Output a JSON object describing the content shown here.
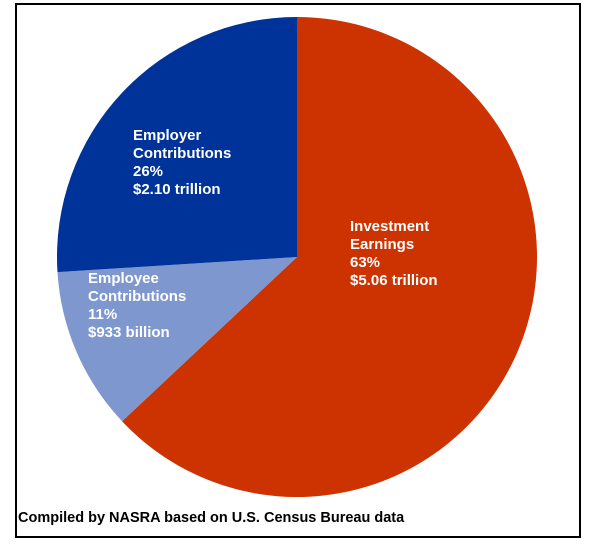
{
  "chart_data": {
    "type": "pie",
    "series": [
      {
        "name": "Investment Earnings",
        "label_lines": [
          "Investment",
          "Earnings"
        ],
        "percent_label": "63%",
        "amount_label": "$5.06 trillion",
        "value": 63,
        "color": "#cc3300"
      },
      {
        "name": "Employee Contributions",
        "label_lines": [
          "Employee",
          "Contributions"
        ],
        "percent_label": "11%",
        "amount_label": "$933 billion",
        "value": 11,
        "color": "#7f97cf"
      },
      {
        "name": "Employer Contributions",
        "label_lines": [
          "Employer",
          "Contributions"
        ],
        "percent_label": "26%",
        "amount_label": "$2.10 trillion",
        "value": 26,
        "color": "#003399"
      }
    ],
    "start_angle_deg": 0,
    "direction": "clockwise",
    "legend": "none"
  },
  "footer": {
    "source": "Compiled by NASRA based on U.S. Census Bureau data"
  }
}
